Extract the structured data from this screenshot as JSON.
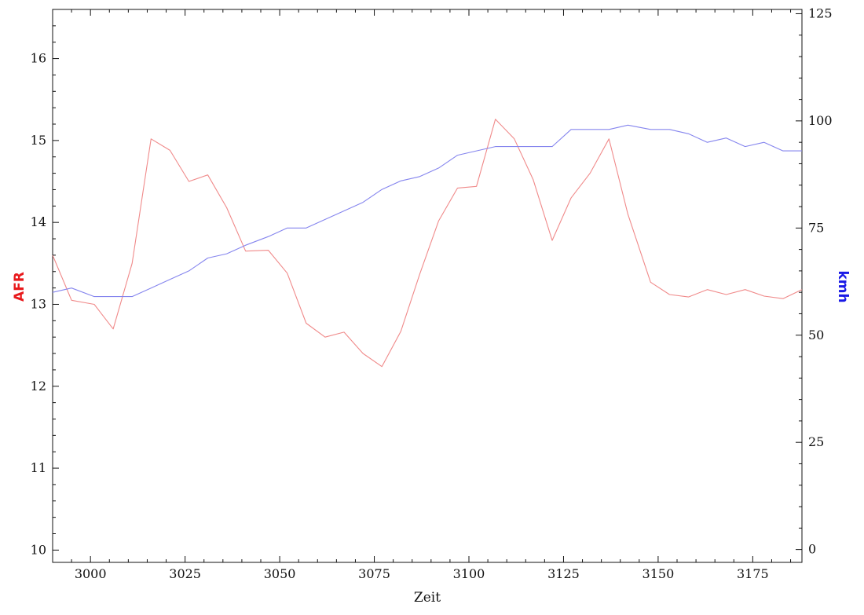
{
  "chart_data": {
    "type": "line",
    "title": "",
    "xlabel": "Zeit",
    "ylabel_left": "AFR",
    "ylabel_right": "kmh",
    "xlim": [
      2990,
      3188
    ],
    "ylim_left": [
      9.85,
      16.6
    ],
    "ylim_right": [
      -3,
      126
    ],
    "x_ticks": [
      3000,
      3025,
      3050,
      3075,
      3100,
      3125,
      3150,
      3175
    ],
    "y_left_ticks": [
      10,
      11,
      12,
      13,
      14,
      15,
      16
    ],
    "y_right_ticks": [
      0,
      25,
      50,
      75,
      100,
      125
    ],
    "grid": false,
    "colors": {
      "afr": "#f08a8a",
      "kmh": "#8585ee",
      "afr_label": "#e8191c",
      "kmh_label": "#1a1ae6"
    },
    "series": [
      {
        "name": "AFR",
        "axis": "left",
        "x": [
          2990,
          2995,
          3001,
          3006,
          3011,
          3016,
          3021,
          3026,
          3031,
          3036,
          3041,
          3047,
          3052,
          3057,
          3062,
          3067,
          3072,
          3077,
          3082,
          3087,
          3092,
          3097,
          3102,
          3107,
          3112,
          3117,
          3122,
          3127,
          3132,
          3137,
          3142,
          3148,
          3153,
          3158,
          3163,
          3168,
          3173,
          3178,
          3183,
          3188
        ],
        "values": [
          13.6,
          13.05,
          13.0,
          12.7,
          13.5,
          15.02,
          14.88,
          14.5,
          14.58,
          14.18,
          13.65,
          13.66,
          13.38,
          12.77,
          12.6,
          12.66,
          12.4,
          12.24,
          12.67,
          13.37,
          14.02,
          14.42,
          14.44,
          15.26,
          15.02,
          14.52,
          13.78,
          14.3,
          14.6,
          15.02,
          14.1,
          13.27,
          13.12,
          13.09,
          13.18,
          13.12,
          13.18,
          13.1,
          13.07,
          13.18
        ]
      },
      {
        "name": "kmh",
        "axis": "right",
        "x": [
          2990,
          2995,
          3001,
          3006,
          3011,
          3016,
          3021,
          3026,
          3031,
          3036,
          3041,
          3047,
          3052,
          3057,
          3062,
          3067,
          3072,
          3077,
          3082,
          3087,
          3092,
          3097,
          3102,
          3107,
          3112,
          3117,
          3122,
          3127,
          3132,
          3137,
          3142,
          3148,
          3153,
          3158,
          3163,
          3168,
          3173,
          3178,
          3183,
          3188
        ],
        "values": [
          60,
          61,
          59,
          59,
          59,
          61,
          63,
          65,
          68,
          69,
          71,
          73,
          75,
          75,
          77,
          79,
          81,
          84,
          86,
          87,
          89,
          92,
          93,
          94,
          94,
          94,
          94,
          98,
          98,
          98,
          99,
          98,
          98,
          97,
          95,
          96,
          94,
          95,
          93,
          93
        ]
      }
    ]
  }
}
